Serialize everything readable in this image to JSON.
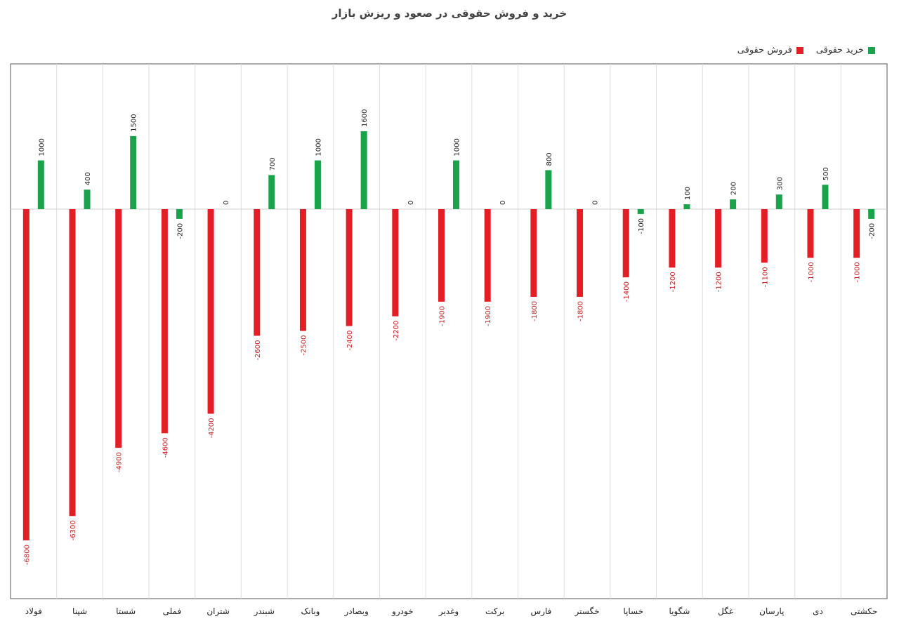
{
  "chart_data": {
    "type": "bar",
    "title": "خرید و فروش حقوقی در صعود و ریزش بازار",
    "categories": [
      "فولاد",
      "شپنا",
      "شستا",
      "فملی",
      "شتران",
      "شبندر",
      "وبانک",
      "وبصادر",
      "خودرو",
      "وغدیر",
      "برکت",
      "فارس",
      "خگستر",
      "خساپا",
      "شگویا",
      "غگل",
      "پارسان",
      "دی",
      "حکشتی"
    ],
    "series": [
      {
        "name": "فروش حقوقی",
        "color": "#e31e24",
        "values": [
          -6800,
          -6300,
          -4900,
          -4600,
          -4200,
          -2600,
          -2500,
          -2400,
          -2200,
          -1900,
          -1900,
          -1800,
          -1800,
          -1400,
          -1200,
          -1200,
          -1100,
          -1000,
          -1000
        ]
      },
      {
        "name": "خرید حقوقی",
        "color": "#1aa34a",
        "values": [
          1000,
          400,
          1500,
          -200,
          0,
          700,
          1000,
          1600,
          0,
          1000,
          0,
          800,
          0,
          -100,
          100,
          200,
          300,
          500,
          -200
        ]
      }
    ],
    "ylim": [
      -7900,
      3000
    ],
    "legend_position": "top-right",
    "grid": "vertical"
  }
}
